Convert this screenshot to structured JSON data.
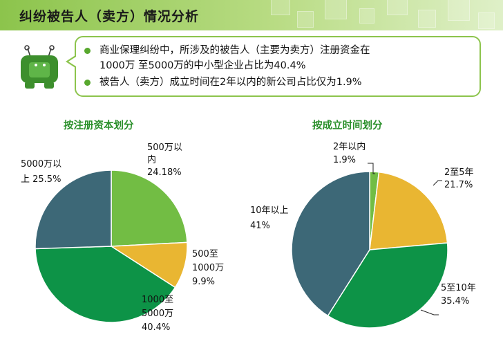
{
  "header": {
    "title": "纠纷被告人（卖方）情况分析"
  },
  "summary": {
    "bullets": [
      {
        "lines": [
          "商业保理纠纷中，所涉及的被告人（主要为卖方）注册资金在",
          "1000万 至5000万的中小型企业占比为40.4%"
        ]
      },
      {
        "lines": [
          "被告人（卖方）成立时间在2年以内的新公司占比仅为1.9%"
        ]
      }
    ]
  },
  "colors": {
    "header_green": "#8cc44c",
    "bullet_green": "#58a82e",
    "title_green": "#2a8f2a",
    "slice_light_green": "#72bd44",
    "slice_yellow": "#e9b632",
    "slice_green": "#0d9347",
    "slice_teal": "#3d6877"
  },
  "chart_data": [
    {
      "type": "pie",
      "title": "按注册资本划分",
      "categories": [
        "500万以内",
        "500至1000万",
        "1000至5000万",
        "5000万以上"
      ],
      "values": [
        24.18,
        9.9,
        40.4,
        25.5
      ],
      "colors": [
        "#72bd44",
        "#e9b632",
        "#0d9347",
        "#3d6877"
      ],
      "labels": [
        [
          "500万以",
          "内",
          "24.18%"
        ],
        [
          "500至",
          "1000万",
          "9.9%"
        ],
        [
          "1000至",
          "5000万",
          "40.4%"
        ],
        [
          "5000万以",
          "上 25.5%"
        ]
      ]
    },
    {
      "type": "pie",
      "title": "按成立时间划分",
      "categories": [
        "2年以内",
        "2至5年",
        "5至10年",
        "10年以上"
      ],
      "values": [
        1.9,
        21.7,
        35.4,
        41
      ],
      "colors": [
        "#72bd44",
        "#e9b632",
        "#0d9347",
        "#3d6877"
      ],
      "labels": [
        [
          "2年以内",
          "1.9%"
        ],
        [
          "2至5年",
          "21.7%"
        ],
        [
          "5至10年",
          "35.4%"
        ],
        [
          "10年以上",
          "41%"
        ]
      ]
    }
  ]
}
